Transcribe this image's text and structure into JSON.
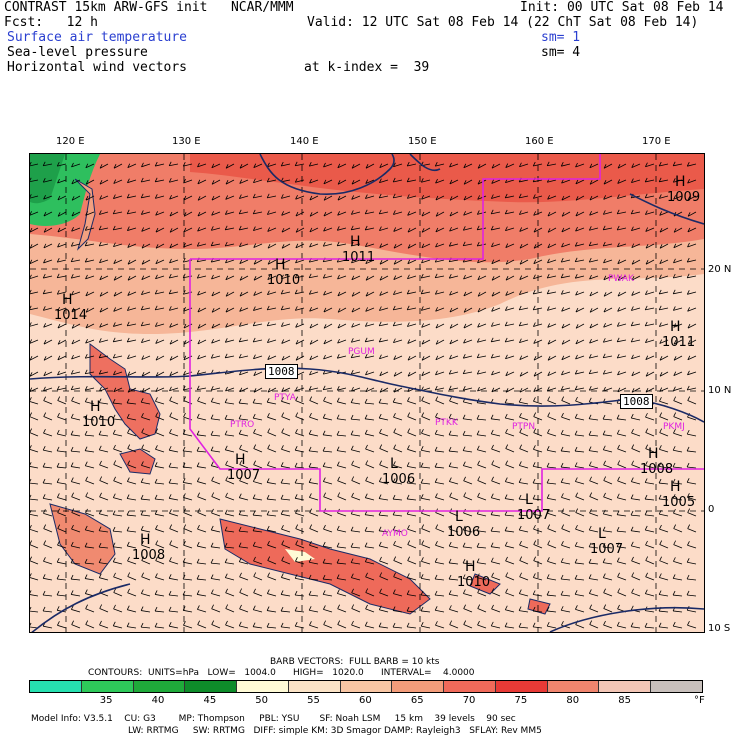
{
  "header": {
    "line1_left": "CONTRAST 15km ARW-GFS init   NCAR/MMM",
    "line1_right": "Init: 00 UTC Sat 08 Feb 14",
    "fcst": "Fcst:   12 h",
    "valid": "Valid: 12 UTC Sat 08 Feb 14 (22 ChT Sat 08 Feb 14)",
    "field1": "Surface air temperature",
    "field1_sm": "sm= 1",
    "field2": "Sea-level pressure",
    "field2_sm": "sm= 4",
    "field3": "Horizontal wind vectors",
    "k_index": "at k-index =  39"
  },
  "axes": {
    "lon_labels": [
      "120 E",
      "130 E",
      "140 E",
      "150 E",
      "160 E",
      "170 E"
    ],
    "lat_labels": [
      "20 N",
      "10 N",
      "0",
      "10 S"
    ]
  },
  "map": {
    "pressure_labels": [
      {
        "text": "H",
        "sub": "1011"
      },
      {
        "text": "H",
        "sub": "1010"
      },
      {
        "text": "H",
        "sub": "1009"
      },
      {
        "text": "H",
        "sub": "1011"
      },
      {
        "text": "H",
        "sub": "1014"
      },
      {
        "text": "H",
        "sub": "1007"
      },
      {
        "text": "L",
        "sub": "1006"
      },
      {
        "text": "L",
        "sub": "1007"
      },
      {
        "text": "L",
        "sub": "1006"
      },
      {
        "text": "H",
        "sub": "1010"
      },
      {
        "text": "L",
        "sub": "1007"
      },
      {
        "text": "H",
        "sub": "1008"
      },
      {
        "text": "H",
        "sub": "1008"
      },
      {
        "text": "H",
        "sub": "1010"
      },
      {
        "text": "H",
        "sub": "1005"
      }
    ],
    "isobar_boxes": [
      "1008",
      "1008"
    ],
    "stations": [
      "PGUM",
      "PTYA",
      "PTRO",
      "PTKK",
      "PTPN",
      "PKMJ",
      "PWAK",
      "AYMO"
    ]
  },
  "footer": {
    "barb": "BARB VECTORS:  FULL BARB = 10 kts",
    "contours": "CONTOURS:  UNITS=hPa   LOW=   1004.0      HIGH=   1020.0      INTERVAL=    4.0000",
    "legend_values": [
      "35",
      "40",
      "45",
      "50",
      "55",
      "60",
      "65",
      "70",
      "75",
      "80",
      "85"
    ],
    "legend_unit": "°F",
    "legend_colors": [
      "#26e0b0",
      "#2ec95a",
      "#1faa3a",
      "#0e8c2a",
      "#fffbd6",
      "#fbe3c6",
      "#f8c6a4",
      "#f39c7a",
      "#f06a5a",
      "#e83a36",
      "#f0856e",
      "#f3c6b6",
      "#c8c0bc"
    ],
    "model_info": "Model Info: V3.5.1    CU: G3        MP: Thompson     PBL: YSU       SF: Noah LSM     15 km    39 levels    90 sec",
    "model_info2": "LW: RRTMG     SW: RRTMG   DIFF: simple KM: 3D Smagor DAMP: Rayleigh3   SFLAY: Rev MM5"
  }
}
